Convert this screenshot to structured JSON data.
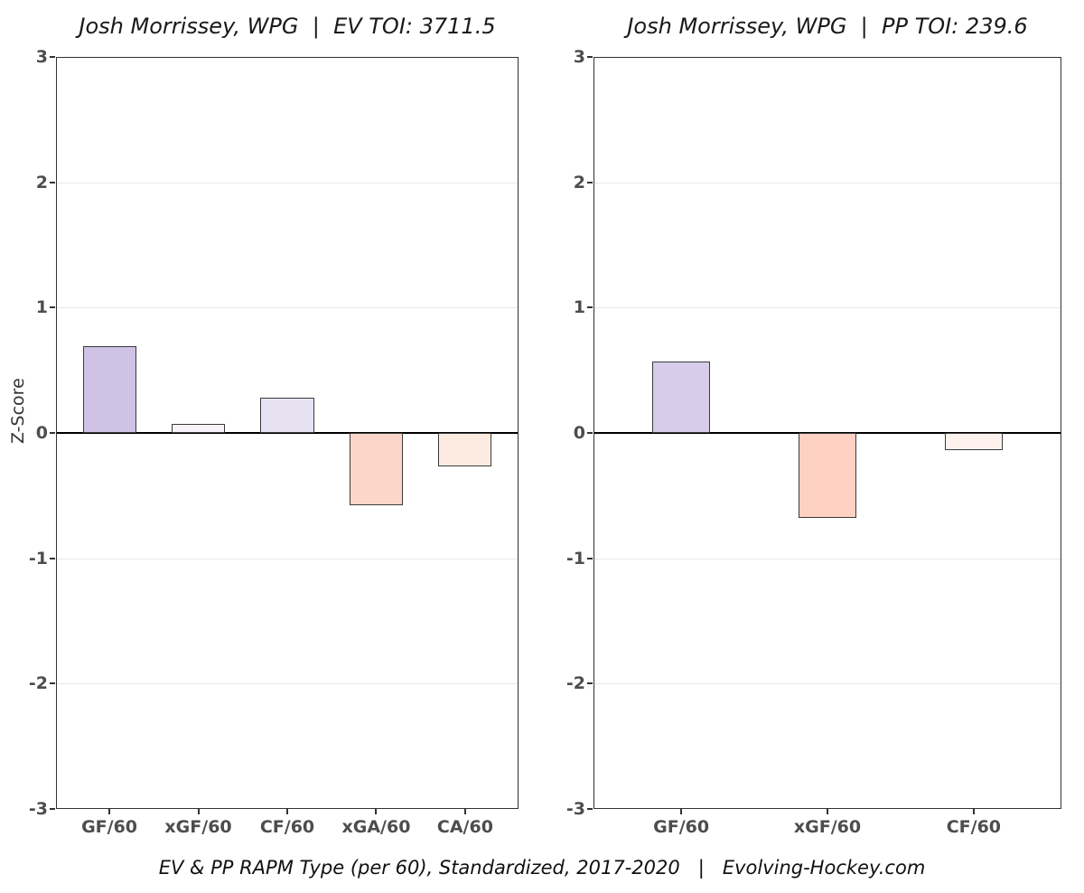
{
  "figure": {
    "caption": "EV & PP RAPM Type (per 60), Standardized, 2017-2020   |   Evolving-Hockey.com"
  },
  "y_axis": {
    "label": "Z-Score",
    "ticks": [
      3,
      2,
      1,
      0,
      -1,
      -2,
      -3
    ],
    "min": -3,
    "max": 3
  },
  "style": {
    "bar_border": "#3a3a3a",
    "panel_border": "#333333",
    "grid_color": "#e7e7e7",
    "zero_line_color": "#000000",
    "axis_text_color": "#4d4d4d",
    "background": "#ffffff"
  },
  "chart_data": [
    {
      "type": "bar",
      "title": "Josh Morrissey, WPG  |  EV TOI: 3711.5",
      "categories": [
        "GF/60",
        "xGF/60",
        "CF/60",
        "xGA/60",
        "CA/60"
      ],
      "values": [
        0.69,
        0.07,
        0.28,
        -0.58,
        -0.27
      ],
      "bar_colors": [
        "#cfc2e5",
        "#f7f3fa",
        "#e7e2f2",
        "#fcd7c9",
        "#fdebe2"
      ],
      "ylabel": "Z-Score",
      "ylim": [
        -3,
        3
      ],
      "grid": true,
      "legend": "none"
    },
    {
      "type": "bar",
      "title": "Josh Morrissey, WPG  |  PP TOI: 239.6",
      "categories": [
        "GF/60",
        "xGF/60",
        "CF/60"
      ],
      "values": [
        0.57,
        -0.68,
        -0.14
      ],
      "bar_colors": [
        "#d7cdea",
        "#fed1c2",
        "#fdf2ee"
      ],
      "ylabel": "Z-Score",
      "ylim": [
        -3,
        3
      ],
      "grid": true,
      "legend": "none"
    }
  ]
}
